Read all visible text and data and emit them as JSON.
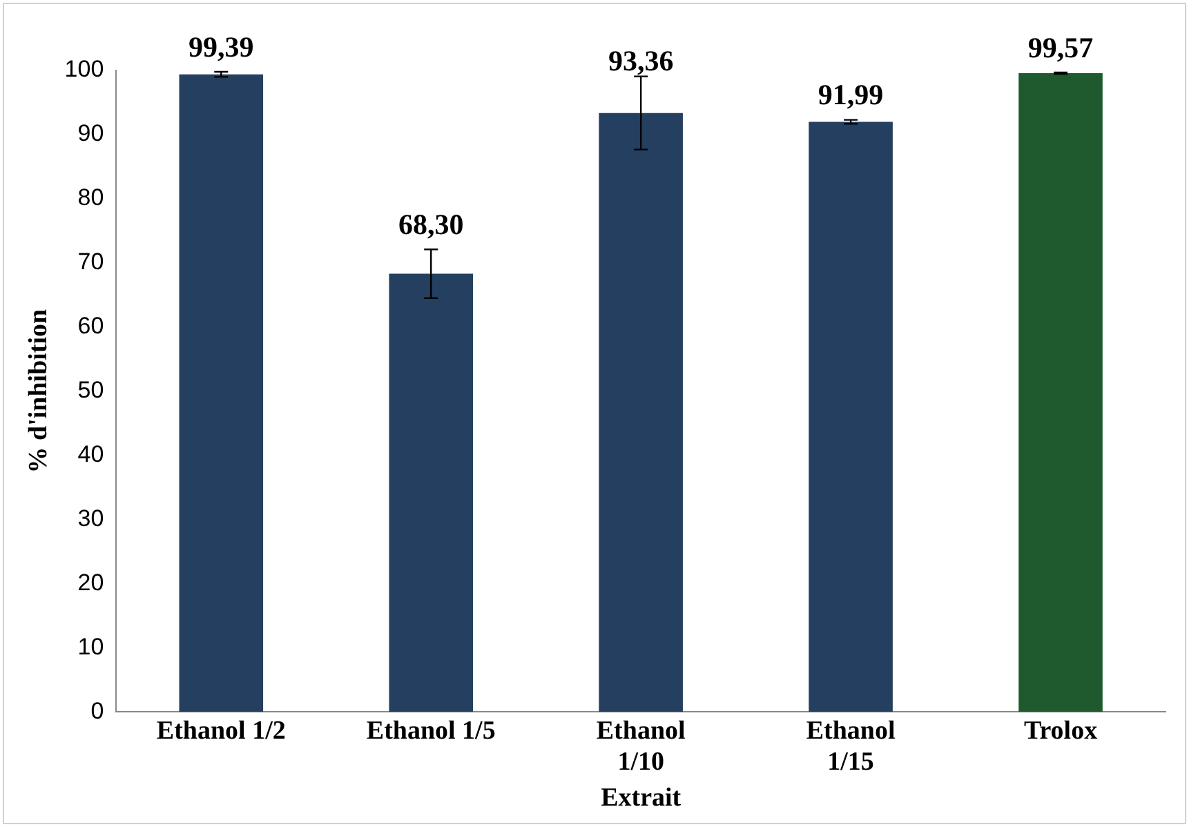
{
  "chart_data": {
    "type": "bar",
    "xlabel": "Extrait",
    "ylabel": "% d'inhibition",
    "categories": [
      "Ethanol 1/2",
      "Ethanol 1/5",
      "Ethanol 1/10",
      "Ethanol 1/15",
      "Trolox"
    ],
    "values": [
      99.39,
      68.3,
      93.36,
      91.99,
      99.57
    ],
    "colors": [
      "#243f60",
      "#243f60",
      "#243f60",
      "#243f60",
      "#1e5a2e"
    ],
    "errors": [
      0.4,
      3.8,
      5.7,
      0.3,
      0.1
    ],
    "value_labels": [
      "99,39",
      "68,30",
      "93,36",
      "91,99",
      "99,57"
    ],
    "ylim": [
      0,
      100
    ],
    "yticks": [
      0,
      10,
      20,
      30,
      40,
      50,
      60,
      70,
      80,
      90,
      100
    ],
    "grid": false,
    "legend": false
  }
}
